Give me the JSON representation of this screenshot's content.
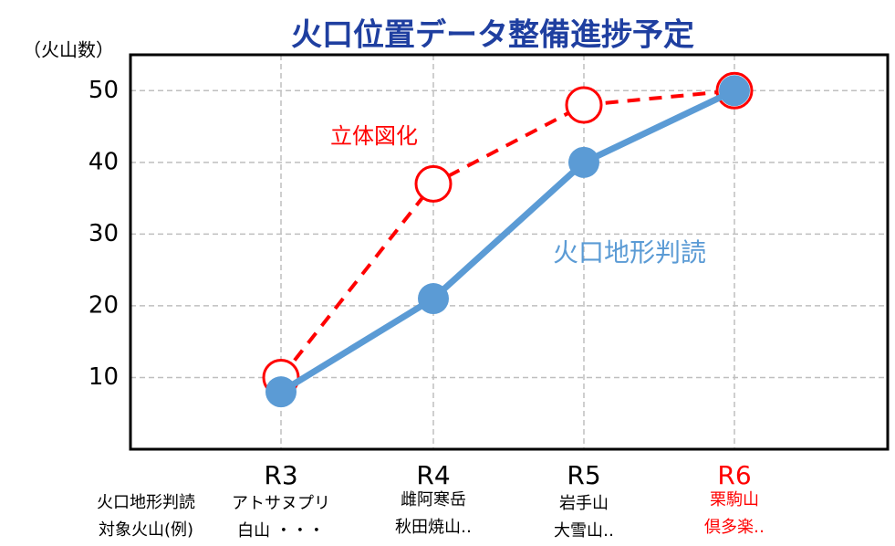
{
  "chart_data": {
    "type": "line",
    "title": "火口位置データ整備進捗予定",
    "y_label": "（火山数）",
    "categories": [
      "R3",
      "R4",
      "R5",
      "R6"
    ],
    "category_colors": [
      "#000000",
      "#000000",
      "#000000",
      "#ff0000"
    ],
    "series": [
      {
        "name": "立体図化",
        "color": "#ff0000",
        "line_style": "dashed",
        "marker": "open",
        "values": [
          10,
          37,
          48,
          50
        ]
      },
      {
        "name": "火口地形判読",
        "color": "#5b9bd5",
        "line_style": "solid",
        "marker": "filled",
        "values": [
          8,
          21,
          40,
          50
        ]
      }
    ],
    "ylim": [
      0,
      55
    ],
    "yticks": [
      10,
      20,
      30,
      40,
      50
    ],
    "grid": true,
    "row_label": [
      "火口地形判読",
      "対象火山(例)"
    ],
    "examples": [
      [
        "アトサヌプリ",
        "白山 ・・・"
      ],
      [
        "雌阿寒岳",
        "秋田焼山‥"
      ],
      [
        "岩手山",
        "大雪山‥"
      ],
      [
        "栗駒山",
        "倶多楽‥"
      ]
    ]
  }
}
